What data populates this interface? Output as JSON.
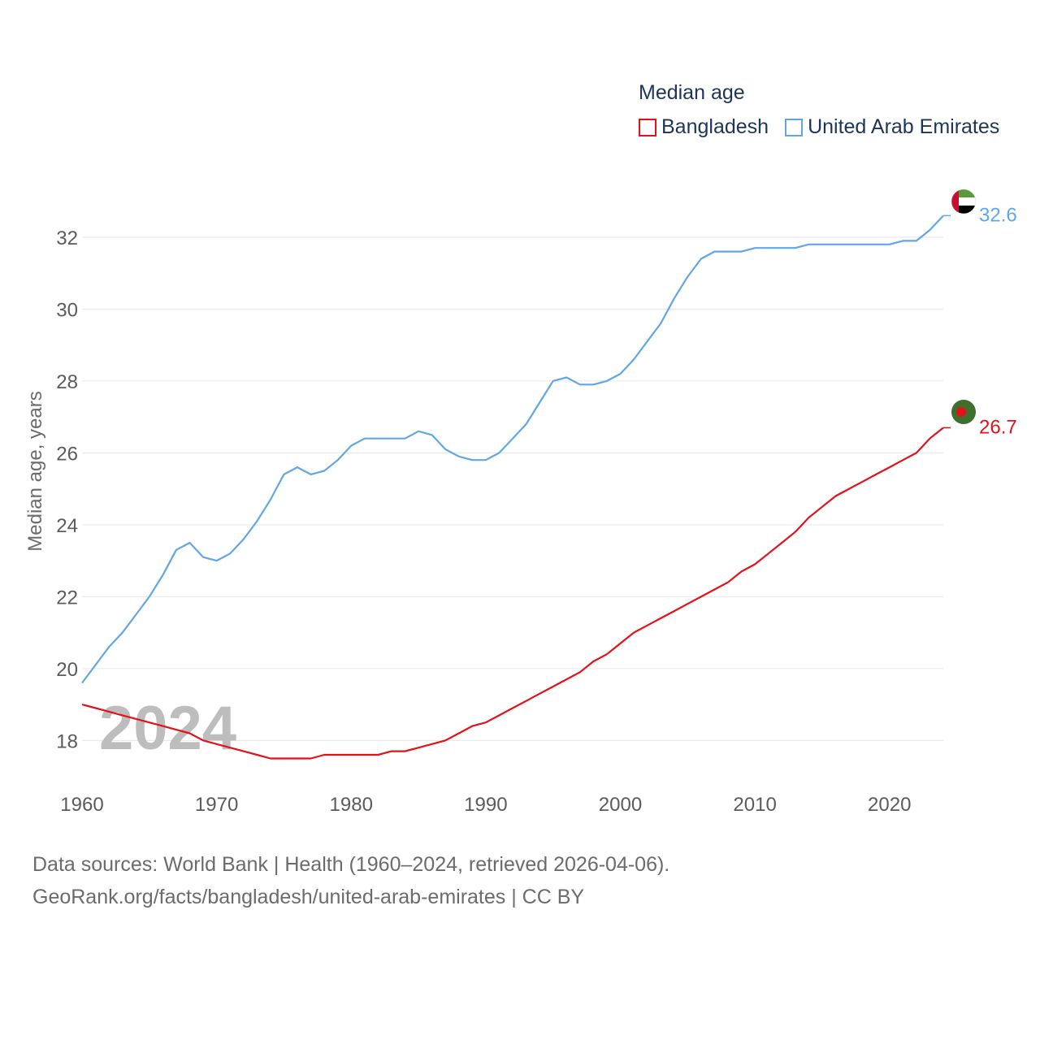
{
  "chart_data": {
    "type": "line",
    "title": "Median age",
    "xlabel": "",
    "ylabel": "Median age, years",
    "year_label": "2024",
    "xlim": [
      1960,
      2024
    ],
    "ylim": [
      16.9,
      33.4
    ],
    "x_ticks": [
      1960,
      1970,
      1980,
      1990,
      2000,
      2010,
      2020
    ],
    "y_ticks": [
      18,
      20,
      22,
      24,
      26,
      28,
      30,
      32
    ],
    "grid": true,
    "legend_position": "top-right",
    "x": [
      1960,
      1961,
      1962,
      1963,
      1964,
      1965,
      1966,
      1967,
      1968,
      1969,
      1970,
      1971,
      1972,
      1973,
      1974,
      1975,
      1976,
      1977,
      1978,
      1979,
      1980,
      1981,
      1982,
      1983,
      1984,
      1985,
      1986,
      1987,
      1988,
      1989,
      1990,
      1991,
      1992,
      1993,
      1994,
      1995,
      1996,
      1997,
      1998,
      1999,
      2000,
      2001,
      2002,
      2003,
      2004,
      2005,
      2006,
      2007,
      2008,
      2009,
      2010,
      2011,
      2012,
      2013,
      2014,
      2015,
      2016,
      2017,
      2018,
      2019,
      2020,
      2021,
      2022,
      2023,
      2024
    ],
    "series": [
      {
        "name": "Bangladesh",
        "color": "#e3121a",
        "end_label": "26.7",
        "values": [
          19.0,
          18.9,
          18.8,
          18.7,
          18.6,
          18.5,
          18.4,
          18.3,
          18.2,
          18.0,
          17.9,
          17.8,
          17.7,
          17.6,
          17.5,
          17.5,
          17.5,
          17.5,
          17.6,
          17.6,
          17.6,
          17.6,
          17.6,
          17.7,
          17.7,
          17.8,
          17.9,
          18.0,
          18.2,
          18.4,
          18.5,
          18.7,
          18.9,
          19.1,
          19.3,
          19.5,
          19.7,
          19.9,
          20.2,
          20.4,
          20.7,
          21.0,
          21.2,
          21.4,
          21.6,
          21.8,
          22.0,
          22.2,
          22.4,
          22.7,
          22.9,
          23.2,
          23.5,
          23.8,
          24.2,
          24.5,
          24.8,
          25.0,
          25.2,
          25.4,
          25.6,
          25.8,
          26.0,
          26.4,
          26.7
        ]
      },
      {
        "name": "United Arab Emirates",
        "color": "#62a6e3",
        "end_label": "32.6",
        "values": [
          19.6,
          20.1,
          20.6,
          21.0,
          21.5,
          22.0,
          22.6,
          23.3,
          23.5,
          23.1,
          23.0,
          23.2,
          23.6,
          24.1,
          24.7,
          25.4,
          25.6,
          25.4,
          25.5,
          25.8,
          26.2,
          26.4,
          26.4,
          26.4,
          26.4,
          26.6,
          26.5,
          26.1,
          25.9,
          25.8,
          25.8,
          26.0,
          26.4,
          26.8,
          27.4,
          28.0,
          28.1,
          27.9,
          27.9,
          28.0,
          28.2,
          28.6,
          29.1,
          29.6,
          30.3,
          30.9,
          31.4,
          31.6,
          31.6,
          31.6,
          31.7,
          31.7,
          31.7,
          31.7,
          31.8,
          31.8,
          31.8,
          31.8,
          31.8,
          31.8,
          31.8,
          31.9,
          31.9,
          32.2,
          32.6
        ]
      }
    ]
  },
  "source": {
    "line1": "Data sources: World Bank | Health (1960–2024, retrieved 2026-04-06).",
    "line2": "GeoRank.org/facts/bangladesh/united-arab-emirates | CC BY"
  }
}
